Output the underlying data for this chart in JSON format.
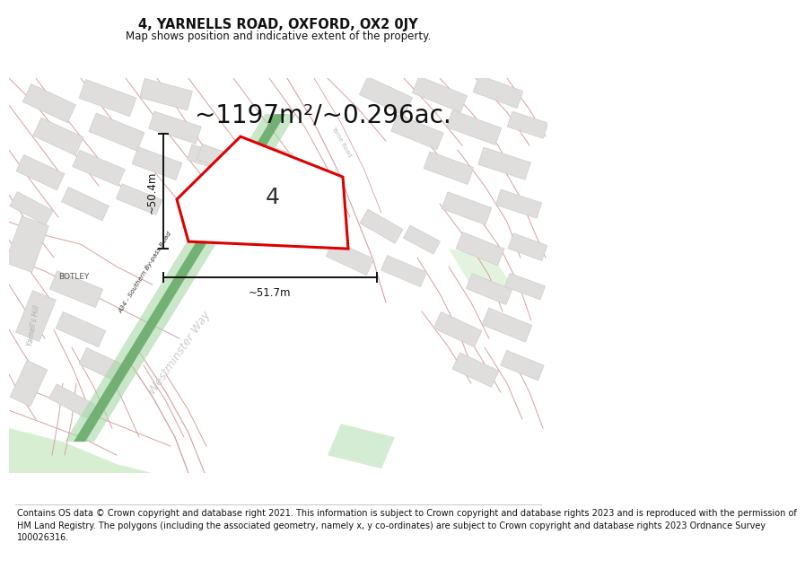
{
  "title": "4, YARNELLS ROAD, OXFORD, OX2 0JY",
  "subtitle": "Map shows position and indicative extent of the property.",
  "area_text": "~1197m²/~0.296ac.",
  "label_number": "4",
  "dim_horizontal": "~51.7m",
  "dim_vertical": "~50.4m",
  "footer_lines": [
    "Contains OS data © Crown copyright and database right 2021. This information is subject to Crown copyright and database rights 2023 and is reproduced with the permission of",
    "HM Land Registry. The polygons (including the associated geometry, namely x, y co-ordinates) are subject to Crown copyright and database rights 2023 Ordnance Survey",
    "100026316."
  ],
  "map_bg": "#f8f7f4",
  "road_pink": "#e8b8b8",
  "road_pink2": "#d8a0a0",
  "building_fill": "#e0dedd",
  "building_edge": "#cccccc",
  "plot_fill": "#ffffff",
  "plot_edge": "#dd0000",
  "green_road_dark": "#6aaa6a",
  "green_road_light": "#b8ddb8",
  "green_park": "#c8e8c8",
  "dim_color": "#111111",
  "text_dark": "#111111",
  "text_grey": "#999999",
  "text_light_grey": "#bbbbbb",
  "title_fontsize": 10.5,
  "subtitle_fontsize": 8.5,
  "area_fontsize": 20,
  "label_fontsize": 18,
  "footer_fontsize": 7.0,
  "dim_fontsize": 8.5
}
